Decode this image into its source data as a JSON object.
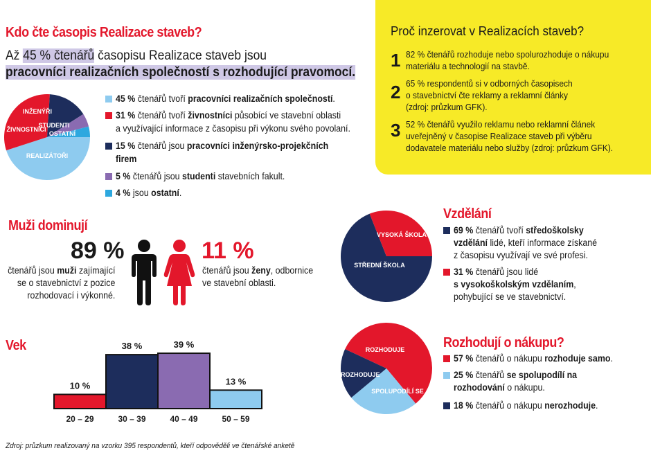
{
  "readers": {
    "title": "Kdo čte časopis Realizace staveb?",
    "line1_prefix": "Až ",
    "line1_pct": "45 % čtenářů",
    "line1_suffix": " časopisu Realizace staveb jsou",
    "line2": "pracovníci realizačních společností s rozhodující pravomocí.",
    "legend": [
      {
        "pct": "45 %",
        "a": " čtenářů tvoří ",
        "b": "pracovníci realizačních společností",
        "c": ".",
        "line2": "",
        "color": "#8ecbef"
      },
      {
        "pct": "31 %",
        "a": " čtenářů tvoří ",
        "b": "živnostníci",
        "c": " působící ve stavební oblasti",
        "line2": "a využívající informace z časopisu při výkonu svého povolaní.",
        "color": "#e3172b"
      },
      {
        "pct": "15 %",
        "a": " čtenářů jsou ",
        "b": "pracovníci inženýrsko-projekčních",
        "c": "",
        "line2": "firem",
        "color": "#1d2d5c"
      },
      {
        "pct": "5 %",
        "a": " čtenářů jsou ",
        "b": "studenti",
        "c": " stavebních fakult.",
        "line2": "",
        "color": "#8a6bb1"
      },
      {
        "pct": "4 %",
        "a": " jsou ",
        "b": "ostatní",
        "c": ".",
        "line2": "",
        "color": "#2da8df"
      }
    ]
  },
  "why": {
    "title": "Proč inzerovat v Realizacích staveb?",
    "items": [
      {
        "n": "1",
        "l1": "82 % čtenářů rozhoduje nebo spolurozhoduje o nákupu",
        "l2": "materiálu a technologií na stavbě.",
        "l3": ""
      },
      {
        "n": "2",
        "l1": "65 % respondentů si v odborných časopisech",
        "l2": "o stavebnictví čte reklamy a reklamní články",
        "l3": "(zdroj: průzkum GFK)."
      },
      {
        "n": "3",
        "l1": "52 % čtenářů využilo reklamu nebo reklamní článek",
        "l2": "uveřejněný v časopise Realizace staveb při výběru",
        "l3": "dodavatele materiálu nebo služby (zdroj: průzkum GFK)."
      }
    ]
  },
  "gender": {
    "title": "Muži dominují",
    "men_pct": "89 %",
    "men_l1a": "čtenářů jsou ",
    "men_l1b": "muži",
    "men_l1c": " zajímající",
    "men_l2": "se o stavebnictví z pozice",
    "men_l3": "rozhodovací i výkonné.",
    "women_pct": "11 %",
    "women_l1a": "čtenářů jsou ",
    "women_l1b": "ženy",
    "women_l1c": ", odbornice",
    "women_l2": "ve stavební oblasti."
  },
  "education": {
    "title": "Vzdělání",
    "items": [
      {
        "pct": "69 %",
        "l1a": " čtenářů tvoří ",
        "l1b": "středoškolsky",
        "l2b": "vzdělání",
        "l2a": " lidé, kteří informace získané",
        "l3": "z časopisu využívají ve své profesi.",
        "color": "#1d2d5c"
      },
      {
        "pct": "31 %",
        "l1a": " čtenářů jsou lidé",
        "l1b": "",
        "l2b": "s vysokoškolským vzdělaním",
        "l2a": ",",
        "l3": "pohybující se ve stavebnictví.",
        "color": "#e3172b"
      }
    ]
  },
  "purchase": {
    "title": "Rozhodují o nákupu?",
    "items": [
      {
        "pct": "57 %",
        "a": " čtenářů o nákupu ",
        "b": "rozhoduje samo",
        "c": ".",
        "l2a": "",
        "l2b": "",
        "l2c": "",
        "color": "#e3172b"
      },
      {
        "pct": "25 %",
        "a": " čtenářů ",
        "b": "se spolupodílí na",
        "c": "",
        "l2a": "",
        "l2b": "rozhodování",
        "l2c": " o nákupu.",
        "color": "#8ecbef"
      },
      {
        "pct": "18 %",
        "a": " čtenářů o nákupu ",
        "b": "nerozhoduje",
        "c": ".",
        "l2a": "",
        "l2b": "",
        "l2c": "",
        "color": "#1d2d5c"
      }
    ]
  },
  "age": {
    "title": "Vek"
  },
  "source": "Zdroj: průzkum realizovaný na vzorku 395 respondentů, kteří odpověděli ve čtenářské anketě",
  "chart_data": [
    {
      "type": "pie",
      "name": "readers",
      "categories": [
        "REALIZÁTOŘI",
        "ŽIVNOSTNÍCI",
        "INŽENÝŘI",
        "STUDENTI",
        "OSTATNÍ"
      ],
      "values": [
        45,
        31,
        15,
        5,
        4
      ],
      "colors": [
        "#8ecbef",
        "#e3172b",
        "#1d2d5c",
        "#8a6bb1",
        "#2da8df"
      ]
    },
    {
      "type": "pie",
      "name": "education",
      "categories": [
        "STŘEDNÍ ŠKOLA",
        "VYSOKÁ ŠKOLA"
      ],
      "values": [
        69,
        31
      ],
      "colors": [
        "#1d2d5c",
        "#e3172b"
      ]
    },
    {
      "type": "pie",
      "name": "purchase",
      "categories": [
        "ROZHODUJE",
        "SPOLUPODÍLÍ SE",
        "NEROZHODUJE"
      ],
      "values": [
        57,
        25,
        18
      ],
      "colors": [
        "#e3172b",
        "#8ecbef",
        "#1d2d5c"
      ]
    },
    {
      "type": "bar",
      "name": "age",
      "categories": [
        "20 – 29",
        "30 – 39",
        "40 – 49",
        "50 – 59"
      ],
      "values": [
        10,
        38,
        39,
        13
      ],
      "labels": [
        "10 %",
        "38 %",
        "39 %",
        "13 %"
      ],
      "colors": [
        "#e3172b",
        "#1d2d5c",
        "#8a6bb1",
        "#8ecbef"
      ],
      "ylim": [
        0,
        40
      ]
    }
  ]
}
